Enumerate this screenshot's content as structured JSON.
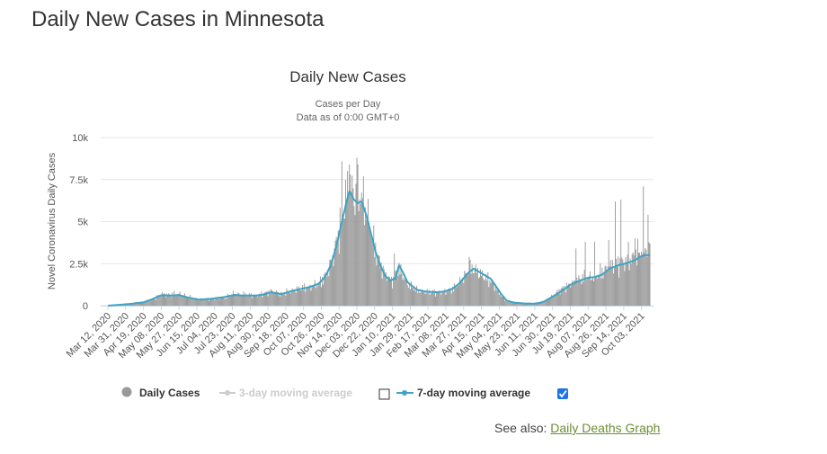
{
  "page": {
    "title": "Daily New Cases in Minnesota",
    "see_also_label": "See also:",
    "see_also_link": "Daily Deaths Graph"
  },
  "colors": {
    "bar": "#999999",
    "line": "#3fa3c4",
    "grid": "#e6e6e6",
    "link": "#6c8e34",
    "checkbox": "#1f73e8"
  },
  "chart_data": {
    "type": "bar",
    "title": "Daily New Cases",
    "subtitle_line1": "Cases per Day",
    "subtitle_line2": "Data as of 0:00 GMT+0",
    "ylabel": "Novel Coronavirus Daily Cases",
    "xlabel": "",
    "ylim": [
      0,
      10000
    ],
    "y_ticks": [
      0,
      2500,
      5000,
      7500,
      10000
    ],
    "y_tick_labels": [
      "0",
      "2.5k",
      "5k",
      "7.5k",
      "10k"
    ],
    "x_tick_labels": [
      "Mar 12, 2020",
      "Mar 31, 2020",
      "Apr 19, 2020",
      "May 08, 2020",
      "May 27, 2020",
      "Jun 15, 2020",
      "Jul 04, 2020",
      "Jul 23, 2020",
      "Aug 11, 2020",
      "Aug 30, 2020",
      "Sep 18, 2020",
      "Oct 07, 2020",
      "Oct 26, 2020",
      "Nov 14, 2020",
      "Dec 03, 2020",
      "Dec 22, 2020",
      "Jan 10, 2021",
      "Jan 29, 2021",
      "Feb 17, 2021",
      "Mar 08, 2021",
      "Mar 27, 2021",
      "Apr 15, 2021",
      "May 04, 2021",
      "May 23, 2021",
      "Jun 11, 2021",
      "Jun 30, 2021",
      "Jul 19, 2021",
      "Aug 07, 2021",
      "Aug 26, 2021",
      "Sep 14, 2021",
      "Oct 03, 2021"
    ],
    "x_tick_interval_days": 19,
    "total_days": 580,
    "series": [
      {
        "name": "Daily Cases",
        "kind": "bars",
        "visible": true,
        "anchors": [
          [
            0,
            2
          ],
          [
            10,
            50
          ],
          [
            25,
            120
          ],
          [
            38,
            200
          ],
          [
            50,
            450
          ],
          [
            57,
            700
          ],
          [
            65,
            650
          ],
          [
            76,
            700
          ],
          [
            90,
            450
          ],
          [
            97,
            380
          ],
          [
            110,
            420
          ],
          [
            125,
            500
          ],
          [
            135,
            700
          ],
          [
            145,
            650
          ],
          [
            158,
            600
          ],
          [
            165,
            700
          ],
          [
            175,
            850
          ],
          [
            185,
            700
          ],
          [
            195,
            850
          ],
          [
            205,
            1000
          ],
          [
            215,
            1100
          ],
          [
            225,
            1300
          ],
          [
            230,
            1600
          ],
          [
            235,
            2000
          ],
          [
            240,
            2800
          ],
          [
            245,
            4000
          ],
          [
            250,
            5200
          ],
          [
            255,
            6600
          ],
          [
            258,
            7400
          ],
          [
            262,
            6600
          ],
          [
            266,
            6300
          ],
          [
            270,
            6700
          ],
          [
            275,
            5800
          ],
          [
            280,
            4800
          ],
          [
            285,
            3500
          ],
          [
            290,
            2600
          ],
          [
            295,
            2000
          ],
          [
            300,
            1600
          ],
          [
            305,
            1500
          ],
          [
            310,
            2300
          ],
          [
            315,
            1800
          ],
          [
            320,
            1300
          ],
          [
            330,
            900
          ],
          [
            340,
            800
          ],
          [
            352,
            800
          ],
          [
            360,
            850
          ],
          [
            368,
            1000
          ],
          [
            375,
            1300
          ],
          [
            380,
            1700
          ],
          [
            385,
            2000
          ],
          [
            390,
            2200
          ],
          [
            395,
            2000
          ],
          [
            400,
            1800
          ],
          [
            405,
            1600
          ],
          [
            410,
            1400
          ],
          [
            415,
            1000
          ],
          [
            420,
            600
          ],
          [
            425,
            300
          ],
          [
            432,
            200
          ],
          [
            440,
            150
          ],
          [
            450,
            130
          ],
          [
            460,
            150
          ],
          [
            465,
            250
          ],
          [
            470,
            400
          ],
          [
            478,
            700
          ],
          [
            485,
            1000
          ],
          [
            495,
            1300
          ],
          [
            505,
            1600
          ],
          [
            512,
            1700
          ],
          [
            520,
            1700
          ],
          [
            528,
            2000
          ],
          [
            536,
            2300
          ],
          [
            545,
            2500
          ],
          [
            552,
            2600
          ],
          [
            558,
            2700
          ],
          [
            562,
            2900
          ],
          [
            566,
            3100
          ],
          [
            570,
            3300
          ],
          [
            575,
            3500
          ],
          [
            579,
            3600
          ]
        ],
        "spikes": [
          [
            250,
            8600
          ],
          [
            258,
            8400
          ],
          [
            266,
            8800
          ],
          [
            306,
            3100
          ],
          [
            386,
            2900
          ],
          [
            500,
            3400
          ],
          [
            510,
            3800
          ],
          [
            520,
            3800
          ],
          [
            535,
            3900
          ],
          [
            542,
            6200
          ],
          [
            548,
            6300
          ],
          [
            556,
            3800
          ],
          [
            563,
            4000
          ],
          [
            572,
            7100
          ],
          [
            577,
            5400
          ]
        ]
      },
      {
        "name": "3-day moving average",
        "kind": "line",
        "visible": false
      },
      {
        "name": "7-day moving average",
        "kind": "line",
        "visible": true,
        "anchors": [
          [
            0,
            0
          ],
          [
            10,
            40
          ],
          [
            25,
            110
          ],
          [
            38,
            200
          ],
          [
            48,
            400
          ],
          [
            57,
            620
          ],
          [
            66,
            600
          ],
          [
            76,
            630
          ],
          [
            88,
            450
          ],
          [
            97,
            360
          ],
          [
            110,
            400
          ],
          [
            125,
            520
          ],
          [
            135,
            640
          ],
          [
            145,
            600
          ],
          [
            158,
            600
          ],
          [
            165,
            650
          ],
          [
            175,
            800
          ],
          [
            185,
            680
          ],
          [
            195,
            850
          ],
          [
            205,
            980
          ],
          [
            215,
            1100
          ],
          [
            225,
            1300
          ],
          [
            232,
            1700
          ],
          [
            238,
            2400
          ],
          [
            244,
            3500
          ],
          [
            250,
            5000
          ],
          [
            255,
            6200
          ],
          [
            258,
            6800
          ],
          [
            263,
            6300
          ],
          [
            267,
            6100
          ],
          [
            271,
            6200
          ],
          [
            276,
            5400
          ],
          [
            281,
            4300
          ],
          [
            286,
            3200
          ],
          [
            291,
            2400
          ],
          [
            296,
            1800
          ],
          [
            301,
            1500
          ],
          [
            307,
            1600
          ],
          [
            311,
            2400
          ],
          [
            315,
            2000
          ],
          [
            320,
            1400
          ],
          [
            330,
            950
          ],
          [
            340,
            830
          ],
          [
            352,
            800
          ],
          [
            360,
            850
          ],
          [
            368,
            1000
          ],
          [
            375,
            1300
          ],
          [
            381,
            1700
          ],
          [
            386,
            2000
          ],
          [
            391,
            2200
          ],
          [
            397,
            2000
          ],
          [
            403,
            1800
          ],
          [
            409,
            1600
          ],
          [
            414,
            1200
          ],
          [
            420,
            700
          ],
          [
            426,
            300
          ],
          [
            434,
            180
          ],
          [
            445,
            130
          ],
          [
            455,
            120
          ],
          [
            463,
            180
          ],
          [
            468,
            300
          ],
          [
            474,
            500
          ],
          [
            480,
            700
          ],
          [
            488,
            1000
          ],
          [
            496,
            1300
          ],
          [
            505,
            1500
          ],
          [
            512,
            1650
          ],
          [
            520,
            1700
          ],
          [
            528,
            1850
          ],
          [
            536,
            2200
          ],
          [
            545,
            2400
          ],
          [
            552,
            2500
          ],
          [
            558,
            2600
          ],
          [
            563,
            2700
          ],
          [
            568,
            2900
          ],
          [
            573,
            3000
          ],
          [
            579,
            3000
          ]
        ]
      }
    ],
    "legend": {
      "items": [
        "Daily Cases",
        "3-day moving average",
        "7-day moving average"
      ],
      "checkbox_3day_checked": false,
      "checkbox_7day_checked": true,
      "placement": "bottom-center"
    }
  }
}
